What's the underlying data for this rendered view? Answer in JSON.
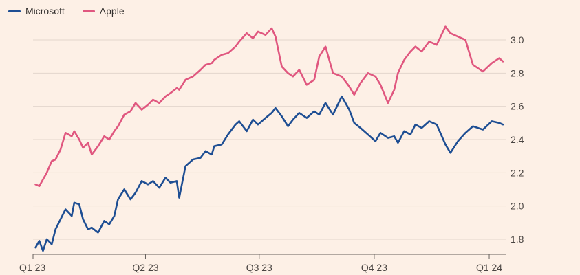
{
  "colors": {
    "background": "#fdf0e6",
    "gridline": "#e3d6cc",
    "axis": "#66605c"
  },
  "chart_data": {
    "type": "line",
    "title": "",
    "xlabel": "",
    "ylabel": "",
    "ylim": [
      1.72,
      3.1
    ],
    "y_ticks": [
      "1.8",
      "2.0",
      "2.2",
      "2.4",
      "2.6",
      "2.8",
      "3.0"
    ],
    "y_tick_values": [
      1.8,
      2.0,
      2.2,
      2.4,
      2.6,
      2.8,
      3.0
    ],
    "x_ticks": [
      "Q1 23",
      "Q2 23",
      "Q3 23",
      "Q4 23",
      "Q1 24"
    ],
    "x_tick_dates": [
      "2023-01-01",
      "2023-04-01",
      "2023-07-01",
      "2023-10-01",
      "2024-01-01"
    ],
    "grid": "horizontal",
    "legend_position": "top-left",
    "series": [
      {
        "name": "Microsoft",
        "color": "#1e4e93",
        "x": [
          "2023-01-03",
          "2023-01-06",
          "2023-01-09",
          "2023-01-12",
          "2023-01-16",
          "2023-01-19",
          "2023-01-23",
          "2023-01-27",
          "2023-02-01",
          "2023-02-03",
          "2023-02-07",
          "2023-02-10",
          "2023-02-14",
          "2023-02-17",
          "2023-02-22",
          "2023-02-27",
          "2023-03-03",
          "2023-03-07",
          "2023-03-10",
          "2023-03-15",
          "2023-03-20",
          "2023-03-24",
          "2023-03-29",
          "2023-04-03",
          "2023-04-07",
          "2023-04-12",
          "2023-04-17",
          "2023-04-21",
          "2023-04-26",
          "2023-04-28",
          "2023-05-03",
          "2023-05-09",
          "2023-05-15",
          "2023-05-19",
          "2023-05-24",
          "2023-05-26",
          "2023-06-01",
          "2023-06-06",
          "2023-06-12",
          "2023-06-15",
          "2023-06-21",
          "2023-06-26",
          "2023-06-30",
          "2023-07-06",
          "2023-07-11",
          "2023-07-14",
          "2023-07-19",
          "2023-07-24",
          "2023-07-28",
          "2023-08-02",
          "2023-08-08",
          "2023-08-14",
          "2023-08-18",
          "2023-08-23",
          "2023-08-29",
          "2023-09-05",
          "2023-09-11",
          "2023-09-15",
          "2023-09-20",
          "2023-09-26",
          "2023-10-02",
          "2023-10-06",
          "2023-10-12",
          "2023-10-17",
          "2023-10-20",
          "2023-10-25",
          "2023-10-30",
          "2023-11-03",
          "2023-11-08",
          "2023-11-14",
          "2023-11-20",
          "2023-11-27",
          "2023-12-01",
          "2023-12-07",
          "2023-12-13",
          "2023-12-19",
          "2023-12-27",
          "2024-01-03",
          "2024-01-09",
          "2024-01-12"
        ],
        "y": [
          1.75,
          1.79,
          1.73,
          1.8,
          1.77,
          1.86,
          1.92,
          1.98,
          1.94,
          2.02,
          2.01,
          1.92,
          1.86,
          1.87,
          1.84,
          1.91,
          1.89,
          1.94,
          2.04,
          2.1,
          2.04,
          2.08,
          2.15,
          2.13,
          2.15,
          2.11,
          2.17,
          2.14,
          2.15,
          2.05,
          2.24,
          2.28,
          2.29,
          2.33,
          2.31,
          2.36,
          2.37,
          2.43,
          2.49,
          2.51,
          2.45,
          2.52,
          2.49,
          2.53,
          2.56,
          2.59,
          2.54,
          2.48,
          2.52,
          2.56,
          2.53,
          2.57,
          2.55,
          2.62,
          2.55,
          2.66,
          2.58,
          2.5,
          2.47,
          2.43,
          2.39,
          2.44,
          2.41,
          2.42,
          2.38,
          2.45,
          2.43,
          2.49,
          2.47,
          2.51,
          2.49,
          2.37,
          2.32,
          2.39,
          2.44,
          2.48,
          2.46,
          2.51,
          2.5,
          2.49
        ]
      },
      {
        "name": "Apple",
        "color": "#e0577f",
        "x": [
          "2023-01-03",
          "2023-01-06",
          "2023-01-09",
          "2023-01-12",
          "2023-01-16",
          "2023-01-19",
          "2023-01-23",
          "2023-01-27",
          "2023-02-01",
          "2023-02-03",
          "2023-02-07",
          "2023-02-10",
          "2023-02-14",
          "2023-02-17",
          "2023-02-22",
          "2023-02-27",
          "2023-03-03",
          "2023-03-07",
          "2023-03-10",
          "2023-03-15",
          "2023-03-20",
          "2023-03-24",
          "2023-03-29",
          "2023-04-03",
          "2023-04-07",
          "2023-04-12",
          "2023-04-17",
          "2023-04-21",
          "2023-04-26",
          "2023-04-28",
          "2023-05-03",
          "2023-05-09",
          "2023-05-15",
          "2023-05-19",
          "2023-05-24",
          "2023-05-26",
          "2023-06-01",
          "2023-06-06",
          "2023-06-12",
          "2023-06-15",
          "2023-06-21",
          "2023-06-26",
          "2023-06-30",
          "2023-07-06",
          "2023-07-11",
          "2023-07-14",
          "2023-07-19",
          "2023-07-24",
          "2023-07-28",
          "2023-08-02",
          "2023-08-08",
          "2023-08-14",
          "2023-08-18",
          "2023-08-23",
          "2023-08-29",
          "2023-09-05",
          "2023-09-11",
          "2023-09-15",
          "2023-09-20",
          "2023-09-26",
          "2023-10-02",
          "2023-10-06",
          "2023-10-12",
          "2023-10-17",
          "2023-10-20",
          "2023-10-25",
          "2023-10-30",
          "2023-11-03",
          "2023-11-08",
          "2023-11-14",
          "2023-11-20",
          "2023-11-27",
          "2023-12-01",
          "2023-12-07",
          "2023-12-13",
          "2023-12-19",
          "2023-12-27",
          "2024-01-03",
          "2024-01-09",
          "2024-01-12"
        ],
        "y": [
          2.13,
          2.12,
          2.16,
          2.2,
          2.27,
          2.28,
          2.34,
          2.44,
          2.42,
          2.45,
          2.4,
          2.35,
          2.38,
          2.31,
          2.36,
          2.42,
          2.4,
          2.45,
          2.48,
          2.55,
          2.57,
          2.62,
          2.58,
          2.61,
          2.64,
          2.62,
          2.66,
          2.68,
          2.71,
          2.7,
          2.76,
          2.78,
          2.82,
          2.85,
          2.86,
          2.88,
          2.91,
          2.92,
          2.96,
          2.99,
          3.04,
          3.01,
          3.05,
          3.03,
          3.07,
          3.02,
          2.84,
          2.8,
          2.78,
          2.82,
          2.73,
          2.76,
          2.9,
          2.96,
          2.8,
          2.78,
          2.72,
          2.67,
          2.74,
          2.8,
          2.78,
          2.73,
          2.62,
          2.7,
          2.8,
          2.88,
          2.93,
          2.96,
          2.93,
          2.99,
          2.97,
          3.08,
          3.04,
          3.02,
          3.0,
          2.85,
          2.81,
          2.86,
          2.89,
          2.87
        ]
      }
    ]
  }
}
